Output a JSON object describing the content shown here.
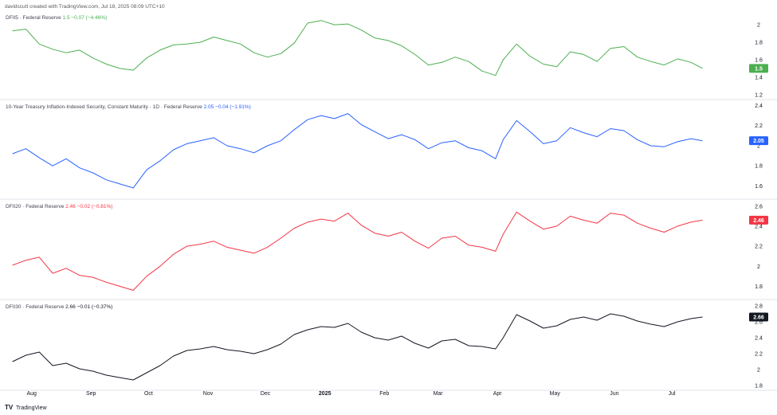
{
  "header": {
    "attribution": "davidscutt created with TradingView.com, Jul 18, 2025 08:09 UTC+10"
  },
  "footer": {
    "logo_text": "TradingView"
  },
  "colors": {
    "green": "#4caf50",
    "blue": "#2962ff",
    "red": "#f23645",
    "black": "#131722",
    "separator": "#e0e3eb"
  },
  "chart_data": [
    {
      "type": "line",
      "title": "DFII5 · Federal Reserve",
      "last_value": "1.5",
      "change": "−0.07 (−4.46%)",
      "color": "#4caf50",
      "y_ticks": [
        "2",
        "1.8",
        "1.6",
        "1.4",
        "1.2"
      ],
      "ylim": [
        1.18,
        2.12
      ],
      "x": [
        "Jul 22",
        "Jul 29",
        "Aug 5",
        "Aug 12",
        "Aug 19",
        "Aug 26",
        "Sep 2",
        "Sep 9",
        "Sep 16",
        "Sep 23",
        "Sep 30",
        "Oct 7",
        "Oct 14",
        "Oct 21",
        "Oct 28",
        "Nov 4",
        "Nov 11",
        "Nov 18",
        "Nov 25",
        "Dec 2",
        "Dec 9",
        "Dec 16",
        "Dec 23",
        "Dec 30",
        "Jan 6",
        "Jan 13",
        "Jan 20",
        "Jan 27",
        "Feb 3",
        "Feb 10",
        "Feb 17",
        "Feb 24",
        "Mar 3",
        "Mar 10",
        "Mar 17",
        "Mar 24",
        "Mar 31",
        "Apr 4",
        "Apr 11",
        "Apr 18",
        "Apr 25",
        "May 2",
        "May 9",
        "May 16",
        "May 23",
        "May 30",
        "Jun 6",
        "Jun 13",
        "Jun 20",
        "Jun 27",
        "Jul 4",
        "Jul 11",
        "Jul 17"
      ],
      "values": [
        1.93,
        1.95,
        1.78,
        1.72,
        1.68,
        1.71,
        1.62,
        1.55,
        1.5,
        1.48,
        1.62,
        1.71,
        1.77,
        1.78,
        1.8,
        1.86,
        1.82,
        1.78,
        1.68,
        1.63,
        1.67,
        1.79,
        2.02,
        2.05,
        2.0,
        2.01,
        1.94,
        1.85,
        1.82,
        1.76,
        1.66,
        1.54,
        1.57,
        1.63,
        1.58,
        1.47,
        1.42,
        1.6,
        1.78,
        1.64,
        1.55,
        1.52,
        1.69,
        1.66,
        1.58,
        1.73,
        1.75,
        1.63,
        1.58,
        1.54,
        1.61,
        1.57,
        1.5
      ]
    },
    {
      "type": "line",
      "title": "10-Year Treasury Inflation-Indexed Security, Constant Maturity · 1D · Federal Reserve",
      "last_value": "2.05",
      "change": "−0.04 (−1.91%)",
      "color": "#2962ff",
      "y_ticks": [
        "2.4",
        "2.2",
        "2",
        "1.8",
        "1.6"
      ],
      "ylim": [
        1.5,
        2.42
      ],
      "x": [
        "Jul 22",
        "Jul 29",
        "Aug 5",
        "Aug 12",
        "Aug 19",
        "Aug 26",
        "Sep 2",
        "Sep 9",
        "Sep 16",
        "Sep 23",
        "Sep 30",
        "Oct 7",
        "Oct 14",
        "Oct 21",
        "Oct 28",
        "Nov 4",
        "Nov 11",
        "Nov 18",
        "Nov 25",
        "Dec 2",
        "Dec 9",
        "Dec 16",
        "Dec 23",
        "Dec 30",
        "Jan 6",
        "Jan 13",
        "Jan 20",
        "Jan 27",
        "Feb 3",
        "Feb 10",
        "Feb 17",
        "Feb 24",
        "Mar 3",
        "Mar 10",
        "Mar 17",
        "Mar 24",
        "Mar 31",
        "Apr 4",
        "Apr 11",
        "Apr 18",
        "Apr 25",
        "May 2",
        "May 9",
        "May 16",
        "May 23",
        "May 30",
        "Jun 6",
        "Jun 13",
        "Jun 20",
        "Jun 27",
        "Jul 4",
        "Jul 11",
        "Jul 17"
      ],
      "values": [
        1.92,
        1.97,
        1.88,
        1.8,
        1.87,
        1.78,
        1.73,
        1.66,
        1.62,
        1.58,
        1.76,
        1.85,
        1.96,
        2.02,
        2.05,
        2.08,
        2.0,
        1.97,
        1.93,
        2.0,
        2.05,
        2.16,
        2.26,
        2.3,
        2.27,
        2.32,
        2.21,
        2.14,
        2.07,
        2.11,
        2.06,
        1.97,
        2.03,
        2.05,
        1.98,
        1.95,
        1.87,
        2.06,
        2.25,
        2.14,
        2.02,
        2.05,
        2.18,
        2.13,
        2.09,
        2.17,
        2.15,
        2.06,
        2.0,
        1.99,
        2.04,
        2.07,
        2.05
      ]
    },
    {
      "type": "line",
      "title": "DFII20 · Federal Reserve",
      "last_value": "2.46",
      "change": "−0.02 (−0.81%)",
      "color": "#f23645",
      "y_ticks": [
        "2.6",
        "2.4",
        "2.2",
        "2",
        "1.8"
      ],
      "ylim": [
        1.7,
        2.63
      ],
      "x": [
        "Jul 22",
        "Jul 29",
        "Aug 5",
        "Aug 12",
        "Aug 19",
        "Aug 26",
        "Sep 2",
        "Sep 9",
        "Sep 16",
        "Sep 23",
        "Sep 30",
        "Oct 7",
        "Oct 14",
        "Oct 21",
        "Oct 28",
        "Nov 4",
        "Nov 11",
        "Nov 18",
        "Nov 25",
        "Dec 2",
        "Dec 9",
        "Dec 16",
        "Dec 23",
        "Dec 30",
        "Jan 6",
        "Jan 13",
        "Jan 20",
        "Jan 27",
        "Feb 3",
        "Feb 10",
        "Feb 17",
        "Feb 24",
        "Mar 3",
        "Mar 10",
        "Mar 17",
        "Mar 24",
        "Mar 31",
        "Apr 4",
        "Apr 11",
        "Apr 18",
        "Apr 25",
        "May 2",
        "May 9",
        "May 16",
        "May 23",
        "May 30",
        "Jun 6",
        "Jun 13",
        "Jun 20",
        "Jun 27",
        "Jul 4",
        "Jul 11",
        "Jul 17"
      ],
      "values": [
        2.01,
        2.06,
        2.09,
        1.93,
        1.98,
        1.91,
        1.89,
        1.84,
        1.8,
        1.76,
        1.9,
        2.0,
        2.12,
        2.2,
        2.22,
        2.25,
        2.19,
        2.16,
        2.13,
        2.19,
        2.28,
        2.38,
        2.44,
        2.47,
        2.45,
        2.53,
        2.41,
        2.33,
        2.3,
        2.34,
        2.25,
        2.18,
        2.28,
        2.3,
        2.21,
        2.19,
        2.15,
        2.32,
        2.54,
        2.45,
        2.37,
        2.4,
        2.5,
        2.46,
        2.43,
        2.53,
        2.51,
        2.43,
        2.38,
        2.34,
        2.4,
        2.44,
        2.46
      ]
    },
    {
      "type": "line",
      "title": "DFII30 · Federal Reserve",
      "last_value": "2.66",
      "change": "−0.01 (−0.37%)",
      "color": "#131722",
      "y_ticks": [
        "2.8",
        "2.6",
        "2.4",
        "2.2",
        "2",
        "1.8"
      ],
      "ylim": [
        1.78,
        2.83
      ],
      "x": [
        "Jul 22",
        "Jul 29",
        "Aug 5",
        "Aug 12",
        "Aug 19",
        "Aug 26",
        "Sep 2",
        "Sep 9",
        "Sep 16",
        "Sep 23",
        "Sep 30",
        "Oct 7",
        "Oct 14",
        "Oct 21",
        "Oct 28",
        "Nov 4",
        "Nov 11",
        "Nov 18",
        "Nov 25",
        "Dec 2",
        "Dec 9",
        "Dec 16",
        "Dec 23",
        "Dec 30",
        "Jan 6",
        "Jan 13",
        "Jan 20",
        "Jan 27",
        "Feb 3",
        "Feb 10",
        "Feb 17",
        "Feb 24",
        "Mar 3",
        "Mar 10",
        "Mar 17",
        "Mar 24",
        "Mar 31",
        "Apr 4",
        "Apr 11",
        "Apr 18",
        "Apr 25",
        "May 2",
        "May 9",
        "May 16",
        "May 23",
        "May 30",
        "Jun 6",
        "Jun 13",
        "Jun 20",
        "Jun 27",
        "Jul 4",
        "Jul 11",
        "Jul 17"
      ],
      "values": [
        2.1,
        2.18,
        2.22,
        2.05,
        2.08,
        2.01,
        1.98,
        1.93,
        1.9,
        1.87,
        1.96,
        2.05,
        2.17,
        2.24,
        2.26,
        2.29,
        2.25,
        2.23,
        2.2,
        2.25,
        2.32,
        2.44,
        2.5,
        2.54,
        2.53,
        2.58,
        2.47,
        2.4,
        2.37,
        2.42,
        2.33,
        2.27,
        2.36,
        2.38,
        2.3,
        2.29,
        2.26,
        2.4,
        2.69,
        2.61,
        2.52,
        2.55,
        2.63,
        2.66,
        2.62,
        2.7,
        2.67,
        2.61,
        2.57,
        2.54,
        2.6,
        2.64,
        2.66
      ]
    }
  ],
  "x_axis": {
    "tick_labels": [
      "Aug",
      "Sep",
      "Oct",
      "Nov",
      "Dec",
      "2025",
      "Feb",
      "Mar",
      "Apr",
      "May",
      "Jun",
      "Jul"
    ],
    "tick_dates": [
      "Aug 1",
      "Sep 1",
      "Oct 1",
      "Nov 1",
      "Dec 1",
      "Jan 1",
      "Feb 1",
      "Mar 1",
      "Apr 1",
      "May 1",
      "Jun 1",
      "Jul 1"
    ]
  }
}
